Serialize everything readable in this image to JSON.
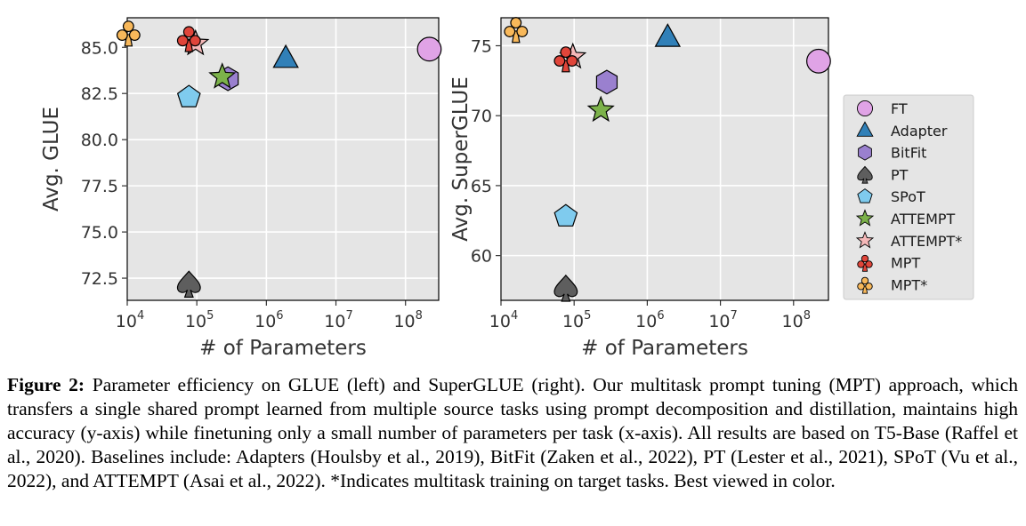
{
  "chart_data": [
    {
      "type": "scatter",
      "xlabel": "# of Parameters",
      "ylabel": "Avg. GLUE",
      "xscale": "log",
      "xlim": [
        10000,
        300000000
      ],
      "ylim": [
        71.3,
        86.6
      ],
      "yticks": [
        "72.5",
        "75.0",
        "77.5",
        "80.0",
        "82.5",
        "85.0"
      ],
      "xticks": [
        {
          "base": "10",
          "exp": "4"
        },
        {
          "base": "10",
          "exp": "5"
        },
        {
          "base": "10",
          "exp": "6"
        },
        {
          "base": "10",
          "exp": "7"
        },
        {
          "base": "10",
          "exp": "8"
        }
      ],
      "grid": true,
      "points": [
        {
          "name": "FT",
          "x": 220000000,
          "y": 84.9
        },
        {
          "name": "Adapter",
          "x": 1900000,
          "y": 84.4
        },
        {
          "name": "BitFit",
          "x": 280000,
          "y": 83.3
        },
        {
          "name": "PT",
          "x": 77000,
          "y": 72.2
        },
        {
          "name": "SPoT",
          "x": 77000,
          "y": 82.3
        },
        {
          "name": "ATTEMPT",
          "x": 232000,
          "y": 83.4
        },
        {
          "name": "ATTEMPT*",
          "x": 96000,
          "y": 85.2
        },
        {
          "name": "MPT",
          "x": 77000,
          "y": 85.5
        },
        {
          "name": "MPT*",
          "x": 10400,
          "y": 85.8
        }
      ]
    },
    {
      "type": "scatter",
      "xlabel": "# of Parameters",
      "ylabel": "Avg. SuperGLUE",
      "xscale": "log",
      "xlim": [
        10000,
        300000000
      ],
      "ylim": [
        56.8,
        77.0
      ],
      "yticks": [
        "60",
        "65",
        "70",
        "75"
      ],
      "xticks": [
        {
          "base": "10",
          "exp": "4"
        },
        {
          "base": "10",
          "exp": "5"
        },
        {
          "base": "10",
          "exp": "6"
        },
        {
          "base": "10",
          "exp": "7"
        },
        {
          "base": "10",
          "exp": "8"
        }
      ],
      "grid": true,
      "points": [
        {
          "name": "FT",
          "x": 220000000,
          "y": 73.9
        },
        {
          "name": "Adapter",
          "x": 1900000,
          "y": 75.6
        },
        {
          "name": "BitFit",
          "x": 280000,
          "y": 72.4
        },
        {
          "name": "PT",
          "x": 77000,
          "y": 57.7
        },
        {
          "name": "SPoT",
          "x": 77000,
          "y": 62.8
        },
        {
          "name": "ATTEMPT",
          "x": 232000,
          "y": 70.4
        },
        {
          "name": "ATTEMPT*",
          "x": 96000,
          "y": 74.2
        },
        {
          "name": "MPT",
          "x": 77000,
          "y": 74.1
        },
        {
          "name": "MPT*",
          "x": 16000,
          "y": 76.2
        }
      ]
    }
  ],
  "legend": {
    "placement": "right",
    "items": [
      {
        "label": "FT",
        "marker": "circle",
        "color": "#e0a3e6"
      },
      {
        "label": "Adapter",
        "marker": "triangle",
        "color": "#3180b8"
      },
      {
        "label": "BitFit",
        "marker": "hexagon",
        "color": "#9a80cf"
      },
      {
        "label": "PT",
        "marker": "spade",
        "color": "#5e5e5e"
      },
      {
        "label": "SPoT",
        "marker": "pentagon",
        "color": "#7fcbee"
      },
      {
        "label": "ATTEMPT",
        "marker": "star",
        "color": "#7cb24a"
      },
      {
        "label": "ATTEMPT*",
        "marker": "star",
        "color": "#f5b9b9"
      },
      {
        "label": "MPT",
        "marker": "club",
        "color": "#e0453a"
      },
      {
        "label": "MPT*",
        "marker": "club",
        "color": "#f8b85a"
      }
    ]
  },
  "caption": {
    "label": "Figure 2:",
    "text": " Parameter efficiency on GLUE (left) and SuperGLUE (right). Our multitask prompt tuning (MPT) approach, which transfers a single shared prompt learned from multiple source tasks using prompt decomposition and distillation, maintains high accuracy (y-axis) while finetuning only a small number of parameters per task (x-axis). All results are based on T5-Base (Raffel et al., 2020). Baselines include: Adapters (Houlsby et al., 2019), BitFit (Zaken et al., 2022), PT (Lester et al., 2021), SPoT (Vu et al., 2022), and ATTEMPT (Asai et al., 2022). *Indicates multitask training on target tasks. Best viewed in color."
  }
}
